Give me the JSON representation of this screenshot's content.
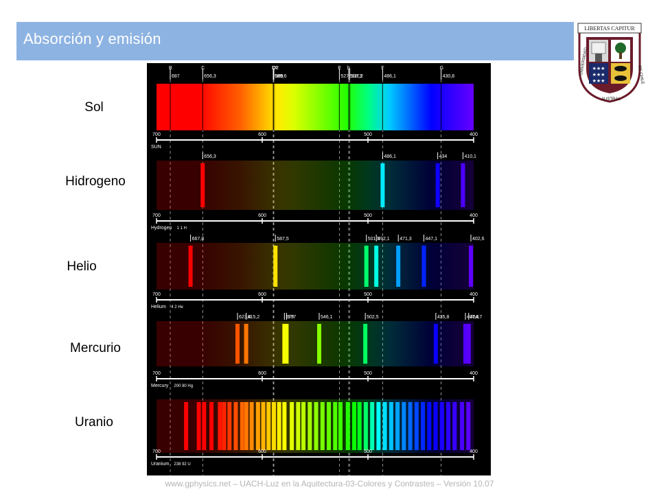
{
  "title": "Absorción y emisión",
  "logo": {
    "banner_text": "LIBERTAS CAPITUR",
    "ring_text": [
      "UNIVERSIDAD",
      "AUSTRAL",
      "DE",
      "CHILE"
    ]
  },
  "rows": [
    {
      "label": "Sol"
    },
    {
      "label": "Hidrogeno"
    },
    {
      "label": "Helio"
    },
    {
      "label": "Mercurio"
    },
    {
      "label": "Uranio"
    }
  ],
  "figure": {
    "fraunhofer": [
      {
        "letter": "B",
        "value": "687"
      },
      {
        "letter": "C",
        "value": "656,3"
      },
      {
        "letter": "D1",
        "value": "589,6"
      },
      {
        "letter": "D2",
        "value": "589"
      },
      {
        "letter": "E",
        "value": "527"
      },
      {
        "letter": "b",
        "value": "518,3"
      },
      {
        "letter": "",
        "value": "517,2"
      },
      {
        "letter": "F",
        "value": "486,1"
      },
      {
        "letter": "G",
        "value": "430,8"
      }
    ],
    "scale_ticks": [
      "700",
      "600",
      "500",
      "400"
    ],
    "panels": [
      {
        "name": "SUN",
        "lines": [
          {
            "wl": 687
          },
          {
            "wl": 656.3
          },
          {
            "wl": 589.6
          },
          {
            "wl": 589
          },
          {
            "wl": 527
          },
          {
            "wl": 518.3
          },
          {
            "wl": 517.2
          },
          {
            "wl": 486.1
          },
          {
            "wl": 430.8
          }
        ]
      },
      {
        "name": "Hydrogen",
        "symbol": "1 1 H",
        "lines": [
          {
            "wl": 656.3,
            "label": "656,3"
          },
          {
            "wl": 486.1,
            "label": "486,1"
          },
          {
            "wl": 434,
            "label": "434"
          },
          {
            "wl": 410.1,
            "label": "410,1"
          }
        ]
      },
      {
        "name": "Helium",
        "symbol": "4 2 He",
        "lines": [
          {
            "wl": 667.8,
            "label": "667,8"
          },
          {
            "wl": 587.5,
            "label": "587,5"
          },
          {
            "wl": 501.5,
            "label": "501,5"
          },
          {
            "wl": 492.1,
            "label": "492,1"
          },
          {
            "wl": 471.3,
            "label": "471,3"
          },
          {
            "wl": 447.1,
            "label": "447,1"
          },
          {
            "wl": 402.6,
            "label": "402,6"
          }
        ]
      },
      {
        "name": "Mercury",
        "symbol": "200 80 Hg",
        "lines": [
          {
            "wl": 623.4,
            "label": "623,4"
          },
          {
            "wl": 615.2,
            "label": "615,2"
          },
          {
            "wl": 579,
            "label": "579"
          },
          {
            "wl": 577,
            "label": "577"
          },
          {
            "wl": 546.1,
            "label": "546,1"
          },
          {
            "wl": 502.5,
            "label": "502,5"
          },
          {
            "wl": 435.8,
            "label": "435,8"
          },
          {
            "wl": 407.8,
            "label": "407,8"
          },
          {
            "wl": 404.7,
            "label": "404,7"
          }
        ]
      },
      {
        "name": "Uranium",
        "symbol": "238 92 U",
        "lines": [
          {
            "wl": 672
          },
          {
            "wl": 660
          },
          {
            "wl": 655
          },
          {
            "wl": 648
          },
          {
            "wl": 640
          },
          {
            "wl": 636
          },
          {
            "wl": 631
          },
          {
            "wl": 625
          },
          {
            "wl": 619
          },
          {
            "wl": 615
          },
          {
            "wl": 610
          },
          {
            "wl": 604
          },
          {
            "wl": 599
          },
          {
            "wl": 594
          },
          {
            "wl": 589
          },
          {
            "wl": 584
          },
          {
            "wl": 579
          },
          {
            "wl": 572
          },
          {
            "wl": 566
          },
          {
            "wl": 561
          },
          {
            "wl": 555
          },
          {
            "wl": 549
          },
          {
            "wl": 543
          },
          {
            "wl": 537
          },
          {
            "wl": 531
          },
          {
            "wl": 526
          },
          {
            "wl": 519
          },
          {
            "wl": 513
          },
          {
            "wl": 508
          },
          {
            "wl": 502
          },
          {
            "wl": 496
          },
          {
            "wl": 490
          },
          {
            "wl": 484
          },
          {
            "wl": 478
          },
          {
            "wl": 472
          },
          {
            "wl": 466
          },
          {
            "wl": 460
          },
          {
            "wl": 454
          },
          {
            "wl": 448
          },
          {
            "wl": 442
          },
          {
            "wl": 436
          },
          {
            "wl": 430
          },
          {
            "wl": 424
          },
          {
            "wl": 418
          },
          {
            "wl": 411
          },
          {
            "wl": 405
          }
        ]
      }
    ],
    "colors": {
      "background": "#000000",
      "axis": "#ffffff",
      "guides": "#ffffff"
    }
  },
  "footer": "www.gphysics.net – UACH-Luz en la Aquitectura-03-Colores y Contrastes – Versión 10.07"
}
